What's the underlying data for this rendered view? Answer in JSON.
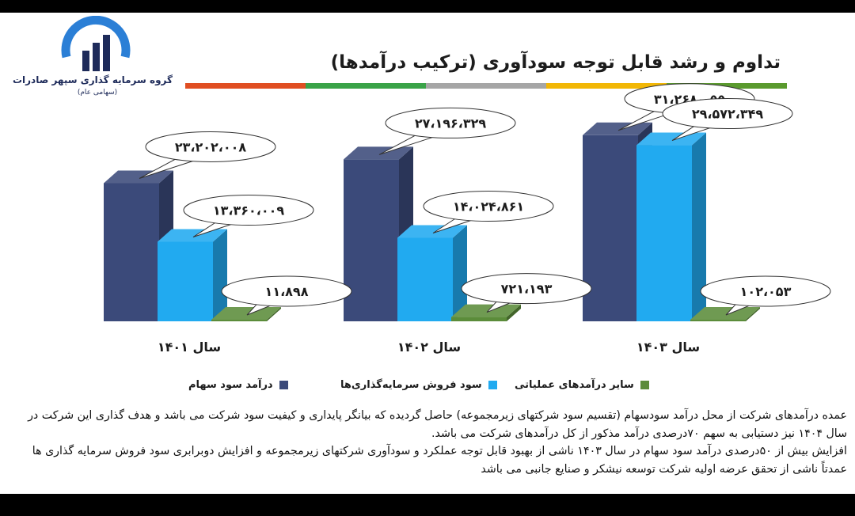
{
  "logo": {
    "name": "گروه سرمایه گذاری سپهر صادرات",
    "sub": "(سهامی عام)",
    "colors": [
      "#2b7fd6",
      "#1e2b5a"
    ]
  },
  "title": "تداوم و رشد قابل توجه سودآوری (ترکیب درآمدها)",
  "strip_colors": [
    "#e04e22",
    "#3aa348",
    "#a6a6a6",
    "#f2b705",
    "#5a9a2e"
  ],
  "chart_data": {
    "type": "bar",
    "categories": [
      "سال ۱۴۰۱",
      "سال ۱۴۰۲",
      "سال ۱۴۰۳"
    ],
    "series": [
      {
        "name": "درآمد سود سهام",
        "color": "#3b4a7a",
        "values": [
          23202008,
          27196329,
          31268055
        ],
        "labels": [
          "۲۳،۲۰۲،۰۰۸",
          "۲۷،۱۹۶،۳۲۹",
          "۳۱،۲۶۸،۰۵۵"
        ]
      },
      {
        "name": "سود فروش سرمایه‌گذاری‌ها",
        "color": "#21aaf0",
        "values": [
          13360009,
          14024861,
          29572349
        ],
        "labels": [
          "۱۳،۳۶۰،۰۰۹",
          "۱۴،۰۲۴،۸۶۱",
          "۲۹،۵۷۲،۳۴۹"
        ]
      },
      {
        "name": "سایر درآمدهای عملیاتی",
        "color": "#5b8c3a",
        "values": [
          11898,
          721193,
          102053
        ],
        "labels": [
          "۱۱،۸۹۸",
          "۷۲۱،۱۹۳",
          "۱۰۲،۰۵۳"
        ]
      }
    ],
    "ylim": [
      0,
      33500000
    ],
    "grid": false,
    "legend_position": "bottom"
  },
  "description": [
    "عمده درآمدهای شرکت از محل درآمد سودسهام (تقسیم سود شرکتهای زیرمجموعه) حاصل گردیده که بیانگر پایداری و کیفیت سود شرکت می باشد و هدف گذاری این شرکت در سال ۱۴۰۴ نیز دستیابی به سهم ۷۰درصدی درآمد مذکور از کل درآمدهای شرکت می باشد.",
    "افزایش بیش از ۵۰درصدی درآمد سود سهام در سال ۱۴۰۳ ناشی از بهبود قابل توجه عملکرد و سودآوری شرکتهای زیرمجموعه و افزایش دوبرابری سود فروش سرمایه گذاری ها عمدتاً ناشی از تحقق عرضه اولیه شرکت توسعه نیشکر و صنایع جانبی می باشد"
  ]
}
